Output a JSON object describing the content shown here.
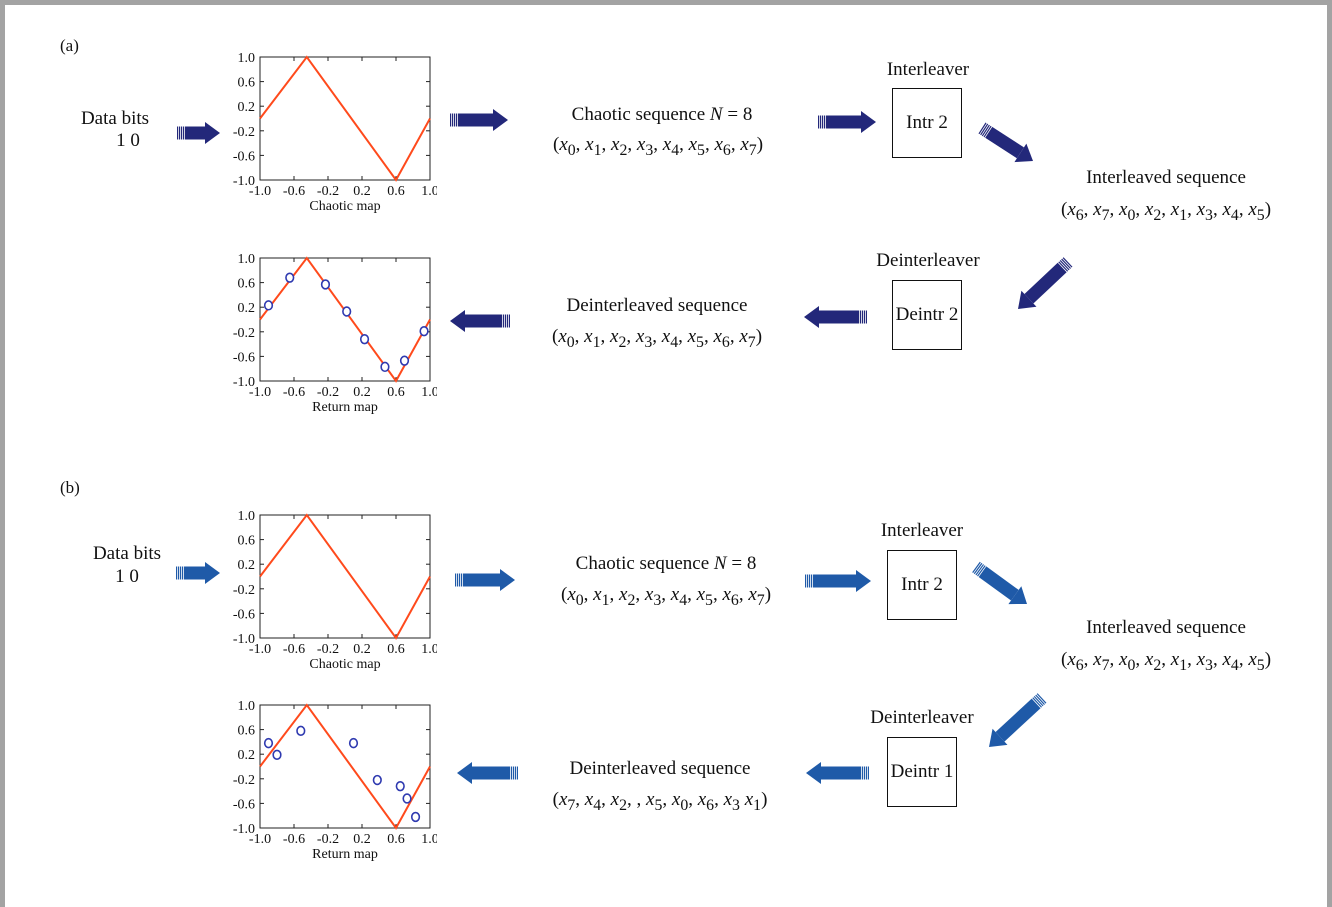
{
  "colors": {
    "dark_arrow": "#23287a",
    "light_arrow": "#1f5aa8",
    "map_line": "#ff4a1c",
    "marker": "#2f3ab0",
    "frame": "#a3a3a3"
  },
  "panels": [
    {
      "label": "(a)",
      "data_bits": {
        "title": "Data bits",
        "bits": "1 0"
      },
      "chaotic_seq": {
        "prefix": "Chaotic sequence ",
        "var": "N",
        "suffix": " = 8",
        "terms": [
          "0",
          "1",
          "2",
          "3",
          "4",
          "5",
          "6",
          "7"
        ]
      },
      "interleaver": {
        "title": "Interleaver",
        "box": "Intr 2"
      },
      "interleaved": {
        "title": "Interleaved sequence",
        "terms": [
          "6",
          "7",
          "0",
          "2",
          "1",
          "3",
          "4",
          "5"
        ]
      },
      "deinterleaver": {
        "title": "Deinterleaver",
        "box": "Deintr 2"
      },
      "deinterleaved": {
        "title": "Deinterleaved sequence",
        "terms": [
          "0",
          "1",
          "2",
          "3",
          "4",
          "5",
          "6",
          "7"
        ]
      },
      "plots": [
        {
          "name": "chaotic-map",
          "xlabel": "Chaotic map",
          "x_ticks": [
            "-1.0",
            "-0.6",
            "-0.2",
            "0.2",
            "0.6",
            "1.0"
          ],
          "y_ticks": [
            "1.0",
            "0.6",
            "0.2",
            "-0.2",
            "-0.6",
            "-1.0"
          ],
          "xlim": [
            -1,
            1
          ],
          "ylim": [
            -1,
            1
          ],
          "line": [
            [
              -1.0,
              -0.0
            ],
            [
              -0.45,
              1.0
            ],
            [
              0.6,
              -1.0
            ],
            [
              1.0,
              -0.0
            ]
          ],
          "points": []
        },
        {
          "name": "return-map",
          "xlabel": "Return map",
          "x_ticks": [
            "-1.0",
            "-0.6",
            "-0.2",
            "0.2",
            "0.6",
            "1.0"
          ],
          "y_ticks": [
            "1.0",
            "0.6",
            "0.2",
            "-0.2",
            "-0.6",
            "-1.0"
          ],
          "xlim": [
            -1,
            1
          ],
          "ylim": [
            -1,
            1
          ],
          "line": [
            [
              -1.0,
              -0.0
            ],
            [
              -0.45,
              1.0
            ],
            [
              0.6,
              -1.0
            ],
            [
              1.0,
              -0.0
            ]
          ],
          "points": [
            [
              -0.9,
              0.23
            ],
            [
              -0.65,
              0.68
            ],
            [
              -0.23,
              0.57
            ],
            [
              0.02,
              0.13
            ],
            [
              0.23,
              -0.32
            ],
            [
              0.47,
              -0.77
            ],
            [
              0.7,
              -0.67
            ],
            [
              0.93,
              -0.19
            ]
          ]
        }
      ]
    },
    {
      "label": "(b)",
      "data_bits": {
        "title": "Data bits",
        "bits": "1 0"
      },
      "chaotic_seq": {
        "prefix": "Chaotic sequence ",
        "var": "N",
        "suffix": " = 8",
        "terms": [
          "0",
          "1",
          "2",
          "3",
          "4",
          "5",
          "6",
          "7"
        ]
      },
      "interleaver": {
        "title": "Interleaver",
        "box": "Intr 2"
      },
      "interleaved": {
        "title": "Interleaved sequence",
        "terms": [
          "6",
          "7",
          "0",
          "2",
          "1",
          "3",
          "4",
          "5"
        ]
      },
      "deinterleaver": {
        "title": "Deinterleaver",
        "box": "Deintr 1"
      },
      "deinterleaved": {
        "title": "Deinterleaved sequence",
        "terms": [
          "7",
          "4",
          "2",
          "",
          "5",
          "0",
          "6",
          "3",
          "1"
        ]
      },
      "plots": [
        {
          "name": "chaotic-map",
          "xlabel": "Chaotic map",
          "x_ticks": [
            "-1.0",
            "-0.6",
            "-0.2",
            "0.2",
            "0.6",
            "1.0"
          ],
          "y_ticks": [
            "1.0",
            "0.6",
            "0.2",
            "-0.2",
            "-0.6",
            "-1.0"
          ],
          "xlim": [
            -1,
            1
          ],
          "ylim": [
            -1,
            1
          ],
          "line": [
            [
              -1.0,
              -0.0
            ],
            [
              -0.45,
              1.0
            ],
            [
              0.6,
              -1.0
            ],
            [
              1.0,
              -0.0
            ]
          ],
          "points": []
        },
        {
          "name": "return-map",
          "xlabel": "Return map",
          "x_ticks": [
            "-1.0",
            "-0.6",
            "-0.2",
            "0.2",
            "0.6",
            "1.0"
          ],
          "y_ticks": [
            "1.0",
            "0.6",
            "0.2",
            "-0.2",
            "-0.6",
            "-1.0"
          ],
          "xlim": [
            -1,
            1
          ],
          "ylim": [
            -1,
            1
          ],
          "line": [
            [
              -1.0,
              -0.0
            ],
            [
              -0.45,
              1.0
            ],
            [
              0.6,
              -1.0
            ],
            [
              1.0,
              -0.0
            ]
          ],
          "points": [
            [
              -0.9,
              0.38
            ],
            [
              -0.8,
              0.19
            ],
            [
              -0.52,
              0.58
            ],
            [
              0.1,
              0.38
            ],
            [
              0.38,
              -0.22
            ],
            [
              0.65,
              -0.32
            ],
            [
              0.73,
              -0.52
            ],
            [
              0.83,
              -0.82
            ]
          ]
        }
      ]
    }
  ]
}
